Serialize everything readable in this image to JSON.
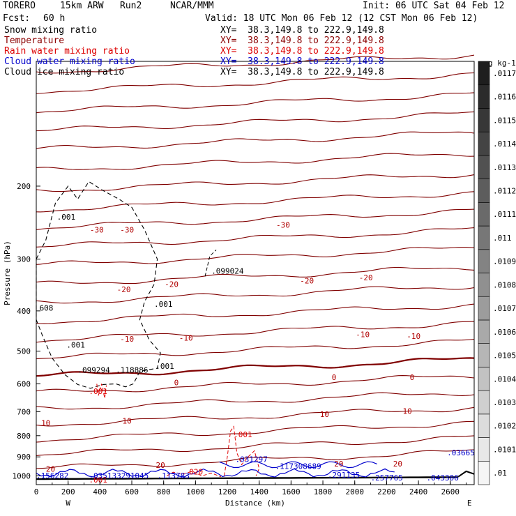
{
  "header": {
    "model": "TORERO",
    "resolution": "15km ARW",
    "run": "Run2",
    "org": "NCAR/MMM",
    "init": "Init: 06 UTC Sat 04 Feb 12",
    "fcst_label": "Fcst:",
    "fcst_value": "60 h",
    "valid": "Valid: 18 UTC Mon 06 Feb 12 (12 CST Mon 06 Feb 12)"
  },
  "fields": [
    {
      "name": "Snow mixing ratio",
      "xy": "XY=  38.3,149.8 to 222.9,149.8",
      "color": "#000000"
    },
    {
      "name": "Temperature",
      "xy": "XY=  38.3,149.8 to 222.9,149.8",
      "color": "#8b0000"
    },
    {
      "name": "Rain water mixing ratio",
      "xy": "XY=  38.3,149.8 to 222.9,149.8",
      "color": "#dd0000"
    },
    {
      "name": "Cloud water mixing ratio",
      "xy": "XY=  38.3,149.8 to 222.9,149.8",
      "color": "#0000cc"
    },
    {
      "name": "Cloud ice mixing ratio",
      "xy": "XY=  38.3,149.8 to 222.9,149.8",
      "color": "#000000"
    }
  ],
  "chart_data": {
    "type": "line",
    "subtype": "vertical cross-section contour plot",
    "xlabel": "Distance (km)",
    "ylabel": "Pressure (hPa)",
    "xlim": [
      0,
      2750
    ],
    "ylim": [
      1050,
      100
    ],
    "x_ticks": [
      0,
      200,
      400,
      600,
      800,
      1000,
      1200,
      1400,
      1600,
      1800,
      2000,
      2200,
      2400,
      2600
    ],
    "y_ticks": [
      200,
      300,
      400,
      500,
      600,
      700,
      800,
      900,
      1000
    ],
    "y_scale": "log",
    "x_end_labels": {
      "left": "W",
      "right": "E"
    },
    "colorbar": {
      "unit": "g kg-1",
      "ticks": [
        ".01",
        ".0101",
        ".0102",
        ".0103",
        ".0104",
        ".0105",
        ".0106",
        ".0107",
        ".0108",
        ".0109",
        ".011",
        ".0111",
        ".0112",
        ".0113",
        ".0114",
        ".0115",
        ".0116",
        ".0117"
      ]
    },
    "temperature_contours": {
      "interval_c": 10,
      "labeled": [
        {
          "label": "-30",
          "x": 380,
          "p": 255
        },
        {
          "label": "-30",
          "x": 570,
          "p": 255
        },
        {
          "label": "-30",
          "x": 1550,
          "p": 248
        },
        {
          "label": "-20",
          "x": 550,
          "p": 355
        },
        {
          "label": "-20",
          "x": 850,
          "p": 345
        },
        {
          "label": "-20",
          "x": 1700,
          "p": 338
        },
        {
          "label": "-20",
          "x": 2070,
          "p": 332
        },
        {
          "label": "-10",
          "x": 570,
          "p": 467
        },
        {
          "label": "-10",
          "x": 940,
          "p": 465
        },
        {
          "label": "-10",
          "x": 2050,
          "p": 456
        },
        {
          "label": "-10",
          "x": 2370,
          "p": 460
        },
        {
          "label": "0",
          "x": 880,
          "p": 595
        },
        {
          "label": "0",
          "x": 1870,
          "p": 578
        },
        {
          "label": "0",
          "x": 2360,
          "p": 578
        },
        {
          "label": "10",
          "x": 60,
          "p": 745
        },
        {
          "label": "10",
          "x": 570,
          "p": 737
        },
        {
          "label": "10",
          "x": 1810,
          "p": 710
        },
        {
          "label": "10",
          "x": 2330,
          "p": 698
        },
        {
          "label": "20",
          "x": 90,
          "p": 963
        },
        {
          "label": "20",
          "x": 780,
          "p": 942
        },
        {
          "label": "20",
          "x": 1900,
          "p": 935
        },
        {
          "label": "20",
          "x": 2270,
          "p": 935
        }
      ]
    },
    "cloud_ice_labels": [
      {
        "label": ".001",
        "x": 130,
        "p": 237
      },
      {
        "label": ".001",
        "x": 740,
        "p": 385
      },
      {
        "label": ".001",
        "x": 190,
        "p": 483
      },
      {
        "label": ".001",
        "x": 750,
        "p": 543
      },
      {
        "label": "608",
        "x": 20,
        "p": 393
      },
      {
        "label": ".099294",
        "x": 260,
        "p": 555
      },
      {
        "label": ".118886",
        "x": 500,
        "p": 555
      },
      {
        "label": ".099024",
        "x": 1100,
        "p": 320
      }
    ],
    "rain_labels": [
      {
        "label": ".001",
        "x": 330,
        "p": 625
      },
      {
        "label": ".001",
        "x": 1240,
        "p": 795
      },
      {
        "label": ".001",
        "x": 330,
        "p": 1022
      },
      {
        "label": "020",
        "x": 960,
        "p": 978
      }
    ],
    "cloud_water_labels": [
      {
        "label": ".031297",
        "x": 1250,
        "p": 912
      },
      {
        "label": ".117308689",
        "x": 1500,
        "p": 947
      },
      {
        "label": ".291135",
        "x": 1830,
        "p": 995
      },
      {
        "label": ".257765",
        "x": 2100,
        "p": 1010
      },
      {
        "label": ".043306",
        "x": 2450,
        "p": 1010
      },
      {
        "label": ".03665",
        "x": 2580,
        "p": 878
      },
      {
        "label": ".156282",
        "x": 0,
        "p": 998
      },
      {
        "label": ".035133291",
        "x": 330,
        "p": 998
      },
      {
        "label": ".045",
        "x": 590,
        "p": 998
      },
      {
        "label": ".113783",
        "x": 760,
        "p": 998
      }
    ]
  }
}
